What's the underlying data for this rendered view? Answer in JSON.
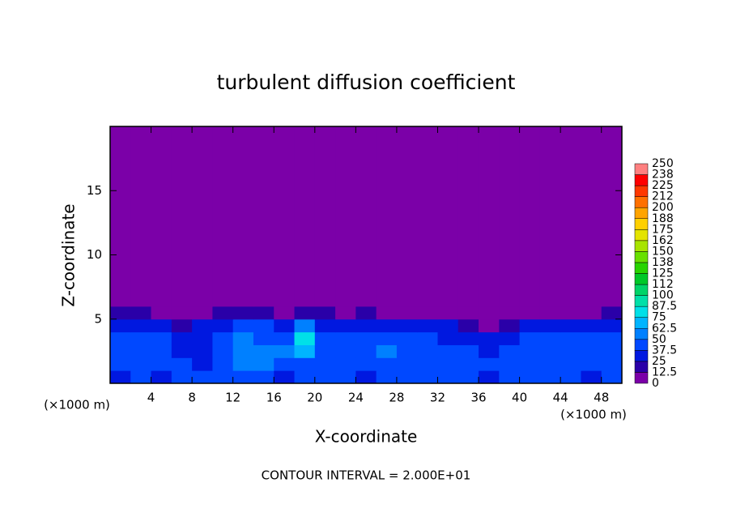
{
  "chart_data": {
    "type": "heatmap",
    "title": "turbulent diffusion coefficient",
    "xlabel": "X-coordinate",
    "ylabel": "Z-coordinate",
    "x_unit_left": "(×1000 m)",
    "x_unit_right": "(×1000 m)",
    "footnote": "CONTOUR INTERVAL = 2.000E+01",
    "xlim": [
      0,
      50
    ],
    "ylim": [
      0,
      20
    ],
    "xticks": [
      4,
      8,
      12,
      16,
      20,
      24,
      28,
      32,
      36,
      40,
      44,
      48
    ],
    "yticks": [
      5,
      10,
      15
    ],
    "x_edges": [
      0,
      2,
      4,
      6,
      8,
      10,
      12,
      14,
      16,
      18,
      20,
      22,
      24,
      26,
      28,
      30,
      32,
      34,
      36,
      38,
      40,
      42,
      44,
      46,
      48,
      50
    ],
    "z_edges": [
      0,
      1,
      2,
      3,
      4,
      5,
      6,
      20
    ],
    "values": [
      [
        30,
        40,
        35,
        40,
        38,
        42,
        45,
        40,
        30,
        40,
        42,
        38,
        35,
        40,
        45,
        40,
        38,
        40,
        36,
        40,
        42,
        38,
        40,
        35,
        40
      ],
      [
        40,
        45,
        38,
        42,
        30,
        45,
        50,
        55,
        48,
        45,
        40,
        42,
        45,
        48,
        40,
        42,
        44,
        40,
        38,
        45,
        40,
        42,
        45,
        40,
        42
      ],
      [
        42,
        48,
        40,
        30,
        35,
        40,
        55,
        50,
        60,
        70,
        45,
        48,
        42,
        50,
        45,
        40,
        42,
        38,
        35,
        40,
        45,
        48,
        42,
        45,
        48
      ],
      [
        40,
        45,
        38,
        25,
        30,
        42,
        50,
        45,
        45,
        75,
        40,
        45,
        40,
        42,
        40,
        38,
        35,
        30,
        25,
        35,
        40,
        42,
        40,
        45,
        42
      ],
      [
        30,
        35,
        25,
        20,
        25,
        35,
        40,
        38,
        30,
        50,
        30,
        35,
        25,
        30,
        35,
        30,
        25,
        15,
        10,
        15,
        25,
        30,
        25,
        30,
        35
      ],
      [
        20,
        15,
        10,
        5,
        10,
        15,
        20,
        15,
        10,
        20,
        15,
        10,
        15,
        10,
        10,
        5,
        5,
        0,
        0,
        0,
        5,
        10,
        5,
        10,
        20
      ],
      [
        0,
        0,
        0,
        0,
        0,
        0,
        0,
        0,
        0,
        0,
        0,
        0,
        0,
        0,
        0,
        0,
        0,
        0,
        0,
        0,
        0,
        0,
        0,
        0,
        0
      ]
    ],
    "colorbar": {
      "levels": [
        0,
        12.5,
        25,
        37.5,
        50,
        62.5,
        75,
        87.5,
        100,
        {
          "value": 112.5,
          "label": "112"
        },
        125,
        {
          "value": 137.5,
          "label": "138"
        },
        150,
        {
          "value": 162.5,
          "label": "162"
        },
        175,
        {
          "value": 187.5,
          "label": "188"
        },
        200,
        {
          "value": 212.5,
          "label": "212"
        },
        225,
        {
          "value": 237.5,
          "label": "238"
        },
        250
      ],
      "colors": [
        "#7b00a8",
        "#2a00a8",
        "#0018e0",
        "#0048ff",
        "#0080ff",
        "#00b4ff",
        "#00e0e8",
        "#00e0a8",
        "#00d468",
        "#00c828",
        "#28d400",
        "#68e000",
        "#a8e400",
        "#e4e400",
        "#ffd000",
        "#ffa400",
        "#ff7000",
        "#ff3800",
        "#ff0000",
        "#ff8080"
      ]
    }
  }
}
